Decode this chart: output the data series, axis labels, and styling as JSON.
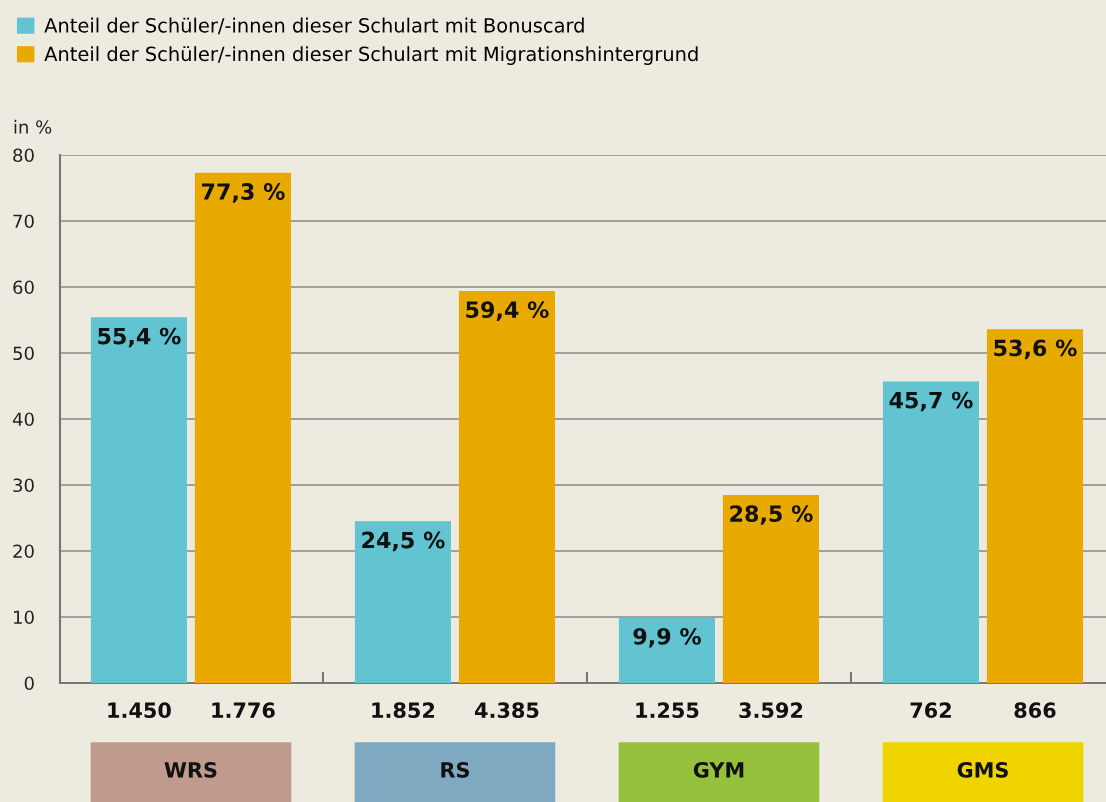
{
  "chart_data": {
    "type": "bar",
    "ylabel": "in %",
    "categories": [
      "WRS",
      "RS",
      "GYM",
      "GMS"
    ],
    "series": [
      {
        "name": "Anteil der Schüler/-innen dieser Schulart mit Bonuscard",
        "color": "#62c3d1",
        "values": [
          55.4,
          24.5,
          9.9,
          45.7
        ],
        "value_labels": [
          "55,4 %",
          "24,5 %",
          "9,9 %",
          "45,7 %"
        ]
      },
      {
        "name": "Anteil der Schüler/-innen dieser Schulart mit Migrationshintergrund",
        "color": "#e8a900",
        "values": [
          77.3,
          59.4,
          28.5,
          53.6
        ],
        "value_labels": [
          "77,3 %",
          "59,4 %",
          "28,5 %",
          "53,6 %"
        ]
      }
    ],
    "annotations": [
      "1.450",
      "1.776",
      "1.852",
      "4.385",
      "1.255",
      "3.592",
      "762",
      "866"
    ],
    "ylim": [
      0,
      80
    ],
    "yticks": [
      0,
      10,
      20,
      30,
      40,
      50,
      60,
      70,
      80
    ],
    "grid": "y",
    "legend": "top left"
  }
}
